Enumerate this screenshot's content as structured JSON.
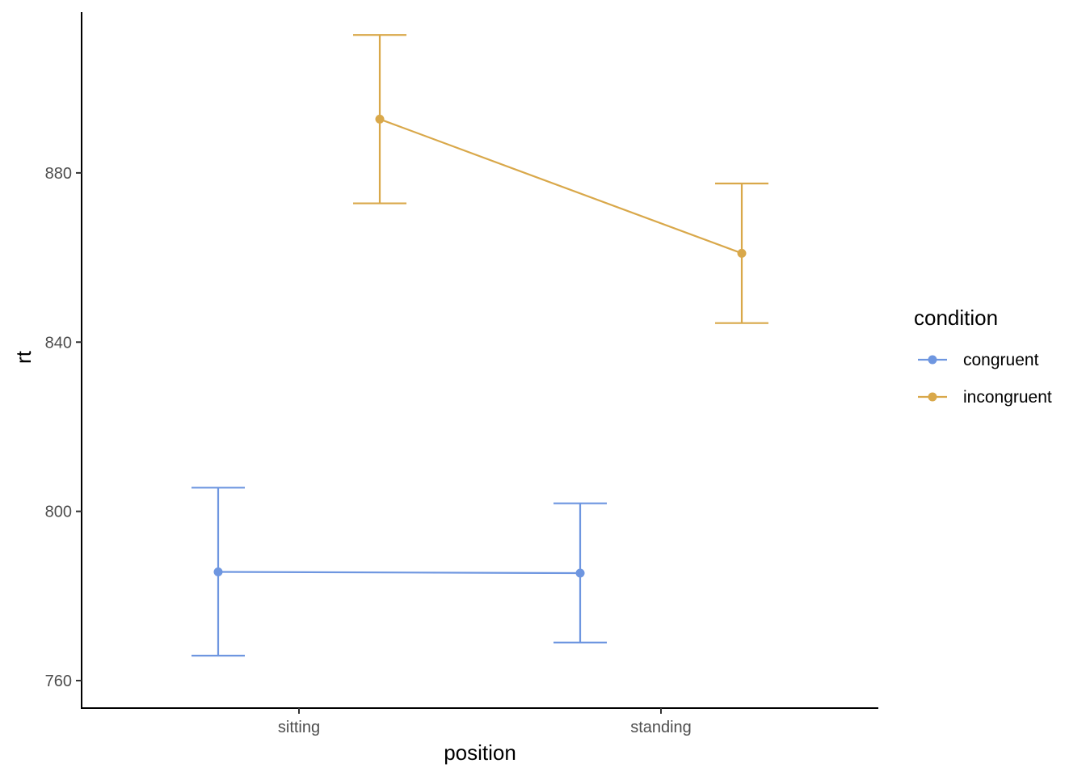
{
  "chart_data": {
    "type": "line",
    "title": "",
    "xlabel": "position",
    "ylabel": "rt",
    "categories": [
      "sitting",
      "standing"
    ],
    "yticks": [
      760,
      800,
      840,
      880
    ],
    "ylim": [
      753.5,
      918
    ],
    "grid": false,
    "legend": {
      "title": "condition",
      "placement": "right"
    },
    "series": [
      {
        "name": "congruent",
        "color": "#6e96e0",
        "offset_side": "left",
        "values": [
          785.7,
          785.4
        ],
        "err_low": [
          765.9,
          769.0
        ],
        "err_high": [
          805.6,
          801.9
        ]
      },
      {
        "name": "incongruent",
        "color": "#d9a84a",
        "offset_side": "right",
        "values": [
          892.7,
          861.0
        ],
        "err_low": [
          872.8,
          844.5
        ],
        "err_high": [
          912.6,
          877.5
        ]
      }
    ]
  }
}
